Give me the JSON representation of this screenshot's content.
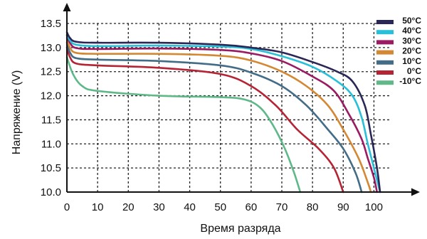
{
  "chart_data": {
    "type": "line",
    "xlabel": "Время разряда",
    "ylabel": "Напряжение (V)",
    "xlim": [
      0,
      105
    ],
    "ylim": [
      10.0,
      13.5
    ],
    "x_ticks": [
      0,
      10,
      20,
      30,
      40,
      50,
      60,
      70,
      80,
      90,
      100
    ],
    "y_ticks": [
      "10.0",
      "10.5",
      "11.0",
      "11.5",
      "12.0",
      "12.5",
      "13.0",
      "13.5"
    ],
    "grid": true,
    "legend_position": "top-right",
    "series": [
      {
        "name": "50°C",
        "color": "#2a2656",
        "points": [
          [
            0,
            13.32
          ],
          [
            1,
            13.2
          ],
          [
            3,
            13.12
          ],
          [
            10,
            13.1
          ],
          [
            30,
            13.1
          ],
          [
            50,
            13.06
          ],
          [
            60,
            13.0
          ],
          [
            70,
            12.9
          ],
          [
            80,
            12.7
          ],
          [
            88,
            12.5
          ],
          [
            93,
            12.3
          ],
          [
            97,
            11.8
          ],
          [
            99,
            11.2
          ],
          [
            101,
            10.5
          ],
          [
            102,
            10.0
          ]
        ]
      },
      {
        "name": "40°C",
        "color": "#29bfd9",
        "points": [
          [
            0,
            13.28
          ],
          [
            1,
            13.15
          ],
          [
            3,
            13.06
          ],
          [
            10,
            13.03
          ],
          [
            30,
            13.04
          ],
          [
            50,
            13.02
          ],
          [
            60,
            12.97
          ],
          [
            70,
            12.82
          ],
          [
            80,
            12.6
          ],
          [
            88,
            12.3
          ],
          [
            93,
            12.0
          ],
          [
            96,
            11.55
          ],
          [
            98,
            11.0
          ],
          [
            100,
            10.5
          ],
          [
            102,
            10.0
          ]
        ]
      },
      {
        "name": "30°C",
        "color": "#9b1b62",
        "points": [
          [
            0,
            13.25
          ],
          [
            1,
            13.1
          ],
          [
            3,
            12.99
          ],
          [
            10,
            12.97
          ],
          [
            30,
            12.98
          ],
          [
            50,
            12.95
          ],
          [
            60,
            12.88
          ],
          [
            70,
            12.72
          ],
          [
            80,
            12.4
          ],
          [
            87,
            12.1
          ],
          [
            92,
            11.6
          ],
          [
            96,
            11.1
          ],
          [
            98,
            10.7
          ],
          [
            100,
            10.3
          ],
          [
            101,
            10.0
          ]
        ]
      },
      {
        "name": "20°C",
        "color": "#d48833",
        "points": [
          [
            0,
            13.2
          ],
          [
            1,
            13.0
          ],
          [
            3,
            12.89
          ],
          [
            10,
            12.87
          ],
          [
            30,
            12.87
          ],
          [
            50,
            12.83
          ],
          [
            60,
            12.73
          ],
          [
            70,
            12.5
          ],
          [
            78,
            12.2
          ],
          [
            85,
            11.8
          ],
          [
            90,
            11.3
          ],
          [
            95,
            10.7
          ],
          [
            98,
            10.2
          ],
          [
            99,
            10.0
          ]
        ]
      },
      {
        "name": "10°C",
        "color": "#436c86",
        "points": [
          [
            0,
            13.1
          ],
          [
            1,
            12.9
          ],
          [
            3,
            12.78
          ],
          [
            10,
            12.75
          ],
          [
            30,
            12.72
          ],
          [
            50,
            12.63
          ],
          [
            60,
            12.48
          ],
          [
            70,
            12.2
          ],
          [
            78,
            11.8
          ],
          [
            85,
            11.3
          ],
          [
            90,
            10.9
          ],
          [
            94,
            10.4
          ],
          [
            96,
            10.0
          ]
        ]
      },
      {
        "name": "0°C",
        "color": "#b52434",
        "points": [
          [
            0,
            13.0
          ],
          [
            1,
            12.8
          ],
          [
            3,
            12.67
          ],
          [
            10,
            12.63
          ],
          [
            30,
            12.58
          ],
          [
            50,
            12.45
          ],
          [
            60,
            12.2
          ],
          [
            68,
            11.8
          ],
          [
            75,
            11.3
          ],
          [
            82,
            10.9
          ],
          [
            87,
            10.5
          ],
          [
            90,
            10.0
          ]
        ]
      },
      {
        "name": "-10°C",
        "color": "#5fb888",
        "points": [
          [
            0,
            12.8
          ],
          [
            2,
            12.45
          ],
          [
            5,
            12.2
          ],
          [
            10,
            12.1
          ],
          [
            30,
            12.0
          ],
          [
            50,
            11.97
          ],
          [
            58,
            11.92
          ],
          [
            63,
            11.75
          ],
          [
            67,
            11.4
          ],
          [
            71,
            10.9
          ],
          [
            74,
            10.4
          ],
          [
            76,
            10.0
          ]
        ]
      }
    ]
  }
}
